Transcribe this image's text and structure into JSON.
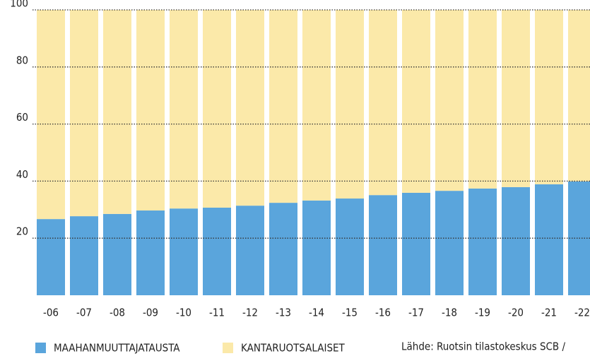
{
  "chart_data": {
    "type": "stacked_bar",
    "categories": [
      "-06",
      "-07",
      "-08",
      "-09",
      "-10",
      "-11",
      "-12",
      "-13",
      "-14",
      "-15",
      "-16",
      "-17",
      "-18",
      "-19",
      "-20",
      "-21",
      "-22"
    ],
    "series": [
      {
        "name": "MAAHANMUUTTAJATAUSTA",
        "color": "#5aa5dc",
        "values": [
          26.7,
          27.7,
          28.5,
          29.7,
          30.4,
          30.7,
          31.4,
          32.4,
          33.2,
          33.9,
          35.1,
          35.9,
          36.6,
          37.4,
          37.9,
          38.9,
          39.9
        ]
      },
      {
        "name": "KANTARUOTSALAISET",
        "color": "#fbe9a9",
        "values": [
          73.3,
          72.3,
          71.5,
          70.3,
          69.6,
          69.3,
          68.6,
          67.6,
          66.8,
          66.1,
          64.9,
          64.1,
          63.4,
          62.6,
          62.1,
          61.1,
          60.1
        ]
      }
    ],
    "ylim": [
      0,
      100
    ],
    "yticks": [
      20,
      40,
      60,
      80,
      100
    ],
    "grid": true,
    "source": "Lähde: Ruotsin tilastokeskus SCB /"
  }
}
